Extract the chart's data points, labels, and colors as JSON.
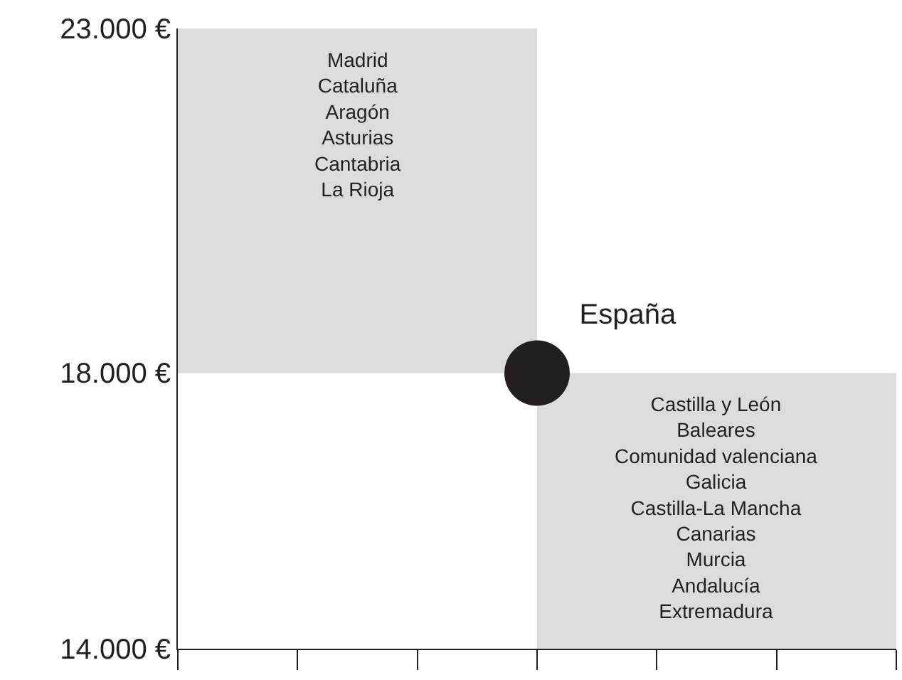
{
  "chart_data": {
    "type": "scatter",
    "categories": [
      null
    ],
    "series": [
      {
        "name": "España",
        "color": "#231f20",
        "values": [
          18000
        ]
      }
    ],
    "ylim": [
      14000,
      23000
    ],
    "yticks": [
      {
        "value": 14000,
        "label": "14.000 €"
      },
      {
        "value": 18000,
        "label": "18.000 €"
      },
      {
        "value": 23000,
        "label": "23.000 €"
      }
    ],
    "bands": [
      {
        "axis": "y",
        "from": 18000,
        "to": 23000,
        "color": "#dcdcdd",
        "label": "Madrid\nCataluña\nAragón\nAsturias\nCantabria\nLa Rioja"
      },
      {
        "axis": "y",
        "from": 14000,
        "to": 18000,
        "color": "#dcdcdd",
        "label": "Castilla y León\nBaleares\nComunidad valenciana\nGalicia\nCastilla-La Mancha\nCanarias\nMurcia\nAndalucía\nExtremadura"
      }
    ],
    "marker": "circle",
    "grid": false,
    "legend": false,
    "tick_labels": "y"
  }
}
